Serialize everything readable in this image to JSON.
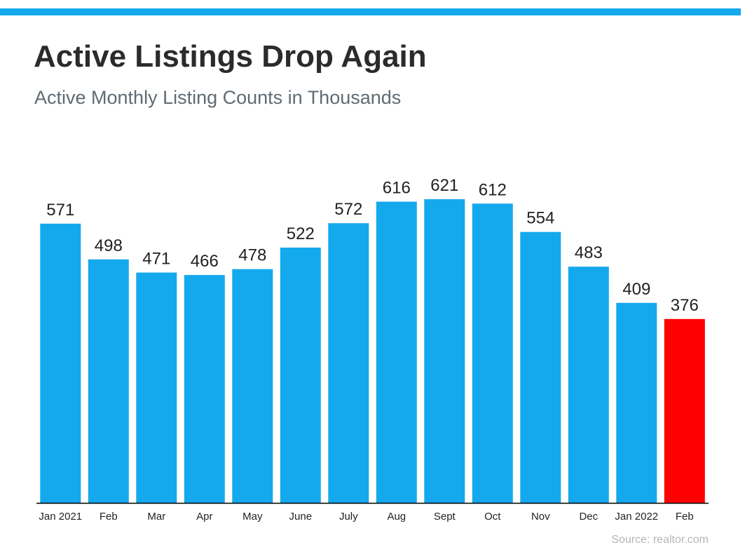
{
  "header": {
    "title": "Active Listings Drop Again",
    "subtitle": "Active Monthly Listing Counts in Thousands"
  },
  "footer": {
    "source": "Source: realtor.com"
  },
  "colors": {
    "accent_rule": "#14a9ec",
    "bar": "#14a9ec",
    "bar_highlight": "#ff0000",
    "axis": "#000000",
    "label": "#222222"
  },
  "chart_data": {
    "type": "bar",
    "title": "Active Listings Drop Again",
    "subtitle": "Active Monthly Listing Counts in Thousands",
    "xlabel": "",
    "ylabel": "",
    "categories": [
      "Jan 2021",
      "Feb",
      "Mar",
      "Apr",
      "May",
      "June",
      "July",
      "Aug",
      "Sept",
      "Oct",
      "Nov",
      "Dec",
      "Jan 2022",
      "Feb"
    ],
    "values": [
      571,
      498,
      471,
      466,
      478,
      522,
      572,
      616,
      621,
      612,
      554,
      483,
      409,
      376
    ],
    "highlight_index": 13,
    "ylim": [
      0,
      621
    ],
    "grid": false,
    "legend": "none",
    "data_labels": true
  }
}
